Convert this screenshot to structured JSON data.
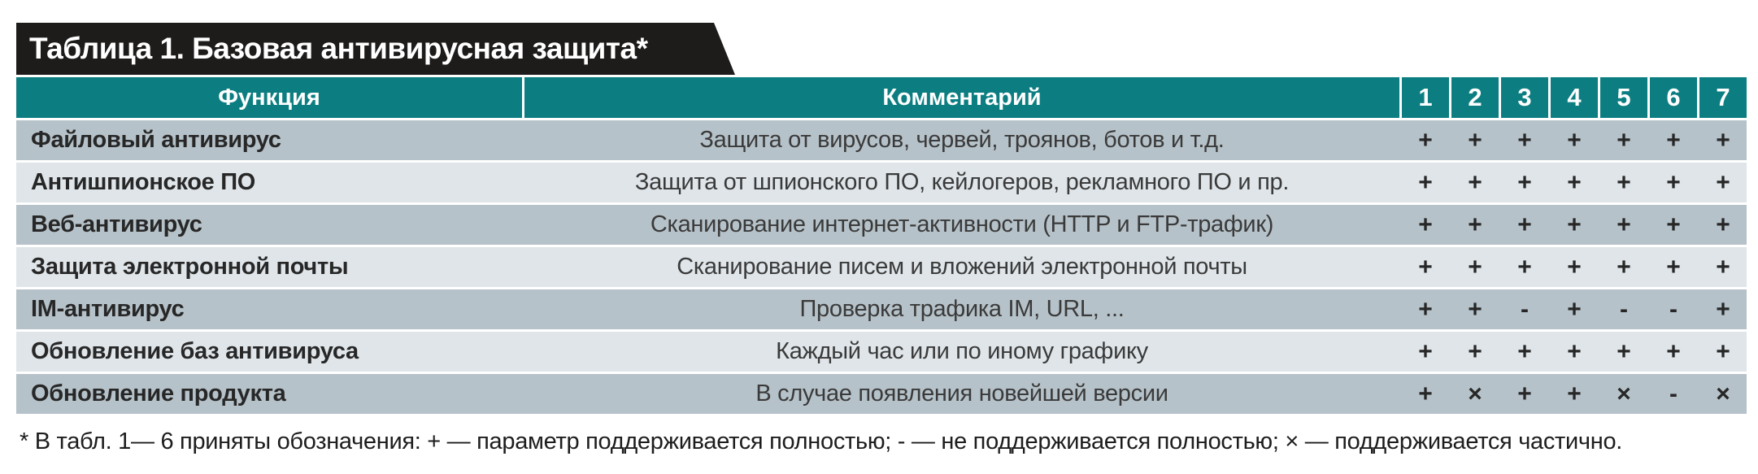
{
  "title": "Таблица 1. Базовая антивирусная защита*",
  "table": {
    "headers": {
      "function": "Функция",
      "comment": "Комментарий",
      "products": [
        "1",
        "2",
        "3",
        "4",
        "5",
        "6",
        "7"
      ]
    },
    "rows": [
      {
        "function": "Файловый антивирус",
        "comment": "Защита от вирусов, червей, троянов, ботов и т.д.",
        "values": [
          "+",
          "+",
          "+",
          "+",
          "+",
          "+",
          "+"
        ]
      },
      {
        "function": "Антишпионское ПО",
        "comment": "Защита от шпионского ПО, кейлогеров, рекламного ПО и пр.",
        "values": [
          "+",
          "+",
          "+",
          "+",
          "+",
          "+",
          "+"
        ]
      },
      {
        "function": "Веб-антивирус",
        "comment": "Сканирование интернет-активности (HTTP и FTP-трафик)",
        "values": [
          "+",
          "+",
          "+",
          "+",
          "+",
          "+",
          "+"
        ]
      },
      {
        "function": "Защита электронной почты",
        "comment": "Сканирование писем и вложений электронной почты",
        "values": [
          "+",
          "+",
          "+",
          "+",
          "+",
          "+",
          "+"
        ]
      },
      {
        "function": "IM-антивирус",
        "comment": "Проверка трафика IM, URL, ...",
        "values": [
          "+",
          "+",
          "-",
          "+",
          "-",
          "-",
          "+"
        ]
      },
      {
        "function": "Обновление баз антивируса",
        "comment": "Каждый час или по иному графику",
        "values": [
          "+",
          "+",
          "+",
          "+",
          "+",
          "+",
          "+"
        ]
      },
      {
        "function": "Обновление продукта",
        "comment": "В случае появления новейшей версии",
        "values": [
          "+",
          "×",
          "+",
          "+",
          "×",
          "-",
          "×"
        ]
      }
    ]
  },
  "footnote": "* В табл. 1— 6 приняты обозначения: + — параметр поддерживается полностью; - — не поддерживается полностью; × — поддерживается частично.",
  "colors": {
    "header_bg": "#0c7e81",
    "row_dark": "#b6c2c9",
    "row_light": "#dfe5e9",
    "banner_bg": "#1e1c1a",
    "header_text": "#ffffff",
    "body_text": "#272727"
  }
}
